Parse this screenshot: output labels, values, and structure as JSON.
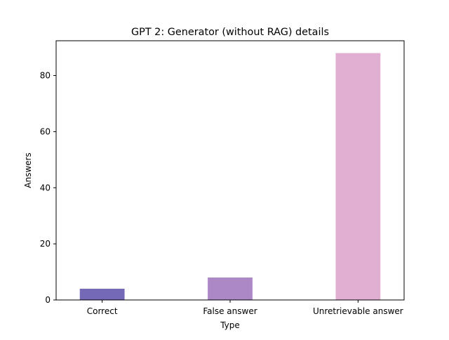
{
  "chart_data": {
    "type": "bar",
    "title": "GPT 2: Generator (without RAG) details",
    "xlabel": "Type",
    "ylabel": "Answers",
    "categories": [
      "Correct",
      "False answer",
      "Unretrievable answer"
    ],
    "values": [
      4,
      8,
      88
    ],
    "colors": [
      "#7469b6",
      "#ad88c6",
      "#e1afd1"
    ],
    "ylim": [
      0,
      92.4
    ],
    "yticks": [
      0,
      20,
      40,
      60,
      80
    ],
    "grid": false,
    "legend": "none"
  }
}
